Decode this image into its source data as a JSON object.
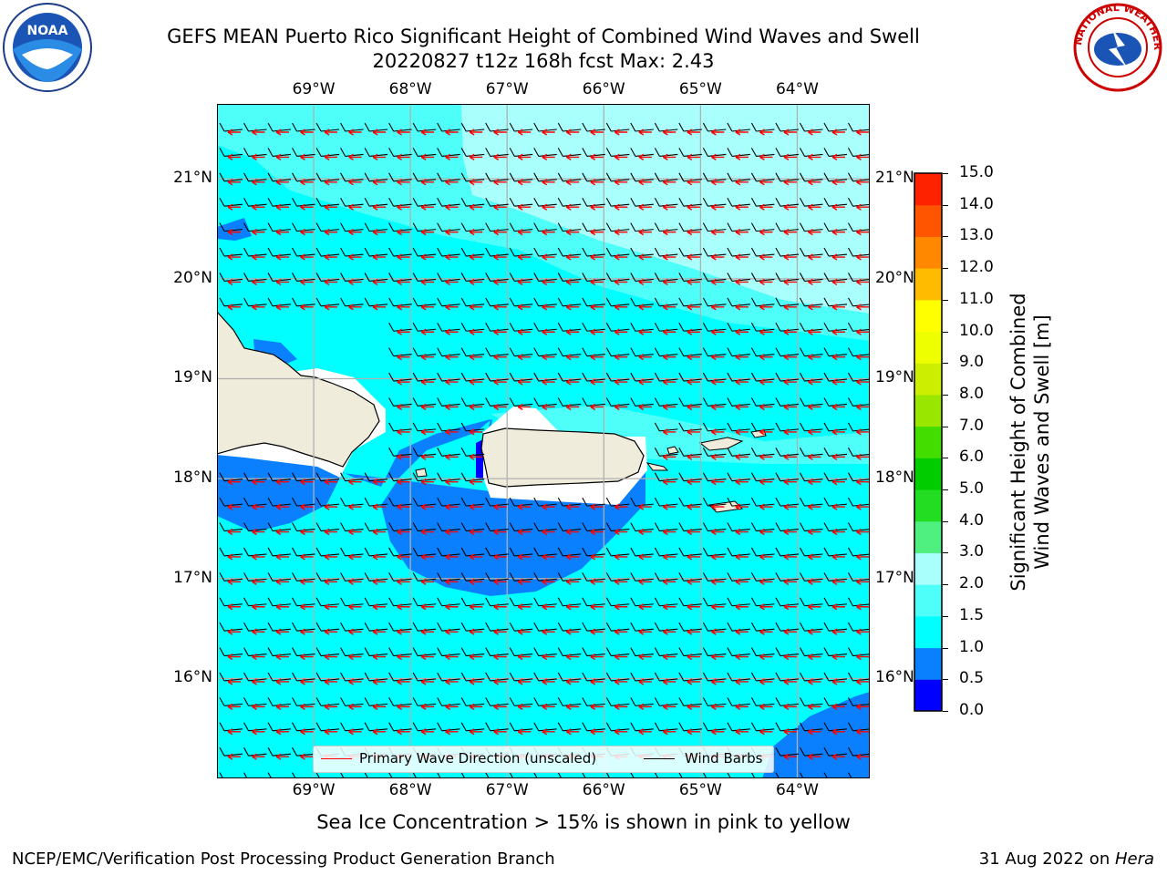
{
  "header": {
    "title_line1": "GEFS MEAN Puerto Rico Significant Height of Combined Wind Waves and Swell",
    "title_line2": "20220827 t12z 168h fcst   Max: 2.43"
  },
  "logos": {
    "left": {
      "name": "noaa-logo",
      "text": "NOAA"
    },
    "right": {
      "name": "nws-logo",
      "text": "NATIONAL WEATHER SERVICE"
    }
  },
  "map": {
    "lon_labels": [
      "69°W",
      "68°W",
      "67°W",
      "66°W",
      "65°W",
      "64°W"
    ],
    "lat_labels": [
      "21°N",
      "20°N",
      "19°N",
      "18°N",
      "17°N",
      "16°N"
    ],
    "extent": {
      "lon_min": -70.0,
      "lon_max": -63.25,
      "lat_min": 15.0,
      "lat_max": 21.75
    },
    "colors": {
      "land": "#efecdc",
      "coast": "#000000",
      "grid": "#b0b0b0",
      "wave_arrow": "#ff0000",
      "wind_barb": "#000000"
    },
    "legend": {
      "wave_label": "Primary Wave Direction (unscaled)",
      "wind_label": "Wind Barbs"
    }
  },
  "colorbar": {
    "label_line1": "Significant Height of Combined",
    "label_line2": "Wind Waves and Swell [m]",
    "ticks": [
      "15.0",
      "14.0",
      "13.0",
      "12.0",
      "11.0",
      "10.0",
      "9.0",
      "8.0",
      "7.0",
      "6.0",
      "5.0",
      "4.0",
      "3.0",
      "2.0",
      "1.5",
      "1.0",
      "0.5",
      "0.0"
    ],
    "colors_bottom_to_top": [
      "#0000ff",
      "#0a80ff",
      "#00ffff",
      "#4dfff8",
      "#a8fffb",
      "#50f080",
      "#22dd22",
      "#00cc00",
      "#44dd00",
      "#99e600",
      "#ccee00",
      "#eeff00",
      "#ffff00",
      "#ffbb00",
      "#ff8800",
      "#ff5500",
      "#ff2200",
      "#ff0000"
    ]
  },
  "notes": {
    "sea_ice": "Sea Ice Concentration > 15% is shown in pink to yellow"
  },
  "footer": {
    "left": "NCEP/EMC/Verification Post Processing Product Generation Branch",
    "right_prefix": "31 Aug 2022 on ",
    "right_host": "Hera"
  }
}
